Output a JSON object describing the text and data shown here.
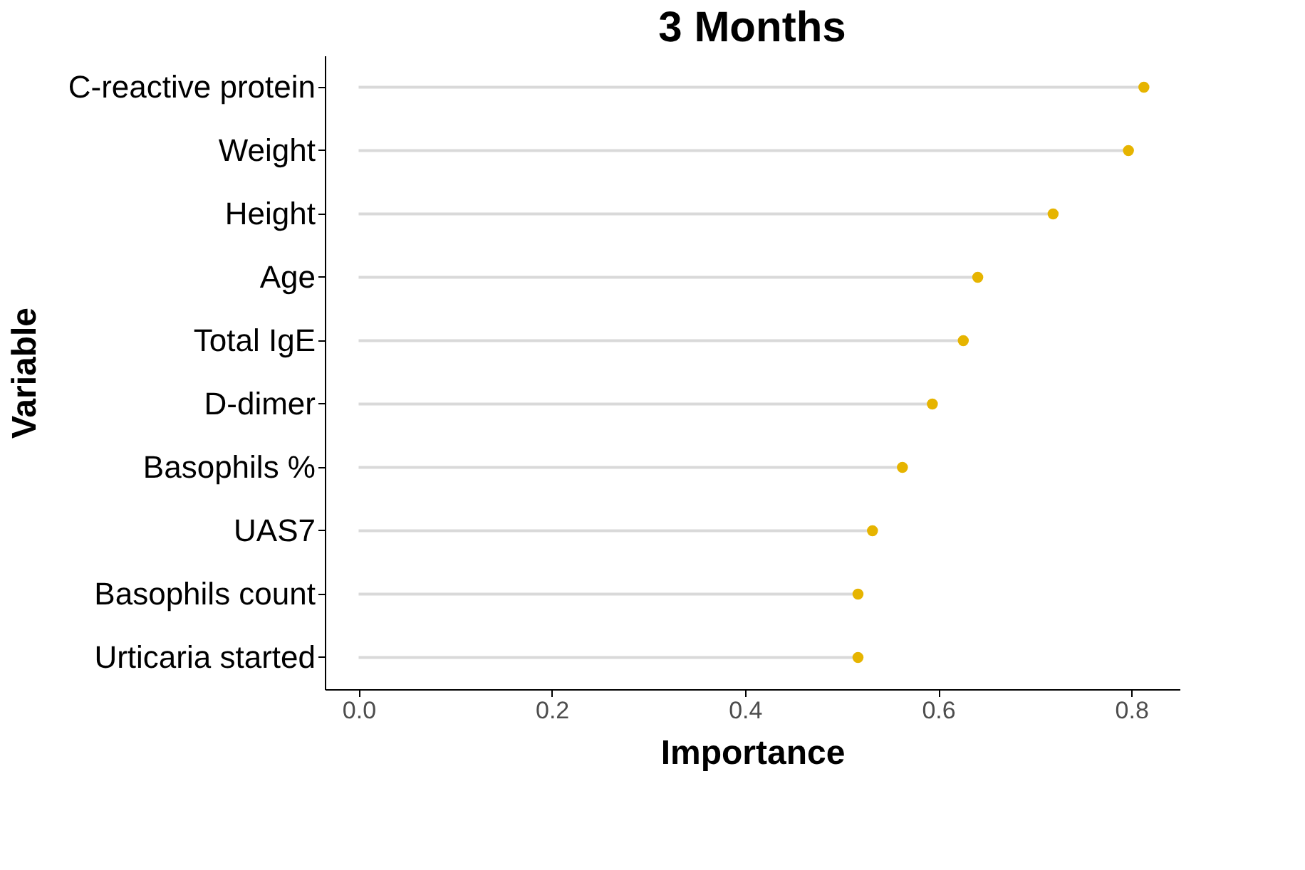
{
  "chart_data": {
    "type": "lollipop",
    "orientation": "horizontal",
    "title": "3 Months",
    "xlabel": "Importance",
    "ylabel": "Variable",
    "categories": [
      "C-reactive protein",
      "Weight",
      "Height",
      "Age",
      "Total IgE",
      "D-dimer",
      "Basophils %",
      "UAS7",
      "Basophils count",
      "Urticaria started"
    ],
    "series": [
      {
        "color": "#e6b400",
        "values": [
          0.813,
          0.797,
          0.719,
          0.641,
          0.626,
          0.594,
          0.563,
          0.532,
          0.517,
          0.517
        ]
      }
    ],
    "xlim": [
      -0.035,
      0.85
    ],
    "xticks": [
      {
        "value": 0,
        "label": "0.0"
      },
      {
        "value": 0.2,
        "label": "0.2"
      },
      {
        "value": 0.4,
        "label": "0.4"
      },
      {
        "value": 0.6,
        "label": "0.6"
      },
      {
        "value": 0.8,
        "label": "0.8"
      }
    ],
    "grid": false,
    "marker": "circle"
  }
}
